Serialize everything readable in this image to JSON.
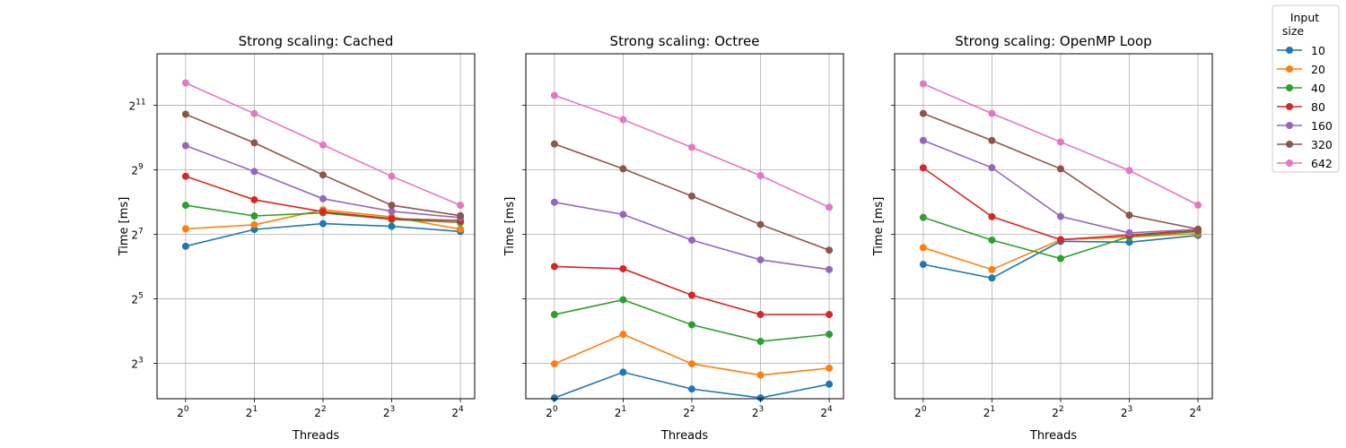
{
  "chart_data": {
    "type": "line",
    "xlabel": "Threads",
    "ylabel": "Time [ms]",
    "scale": {
      "x": "log2",
      "y": "log2"
    },
    "x": [
      1,
      2,
      4,
      8,
      16
    ],
    "x_ticks": [
      {
        "base": "2",
        "exp": "0"
      },
      {
        "base": "2",
        "exp": "1"
      },
      {
        "base": "2",
        "exp": "2"
      },
      {
        "base": "2",
        "exp": "3"
      },
      {
        "base": "2",
        "exp": "4"
      }
    ],
    "y_ticks": [
      {
        "base": "2",
        "exp": "3"
      },
      {
        "base": "2",
        "exp": "5"
      },
      {
        "base": "2",
        "exp": "7"
      },
      {
        "base": "2",
        "exp": "9"
      },
      {
        "base": "2",
        "exp": "11"
      }
    ],
    "grid": true,
    "legend": {
      "title_line1": "Input",
      "title_line2": "size",
      "position": "outside-top-right",
      "entries": [
        "10",
        "20",
        "40",
        "80",
        "160",
        "320",
        "642"
      ]
    },
    "colors": [
      "#1f77b4",
      "#ff7f0e",
      "#2ca02c",
      "#d62728",
      "#9467bd",
      "#8c564b",
      "#e377c2"
    ],
    "panels": [
      {
        "title": "Strong scaling: Cached",
        "show_ylabels": true,
        "ylim_log2": [
          1.9,
          12.6
        ],
        "series": [
          {
            "name": "10",
            "values": [
              99,
              142,
              161,
              152,
              136
            ]
          },
          {
            "name": "20",
            "values": [
              144,
              157,
              217,
              186,
              143
            ]
          },
          {
            "name": "40",
            "values": [
              239,
              190,
              203,
              176,
              165
            ]
          },
          {
            "name": "80",
            "values": [
              446,
              269,
              208,
              179,
              172
            ]
          },
          {
            "name": "160",
            "values": [
              861,
              494,
              275,
              210,
              183
            ]
          },
          {
            "name": "320",
            "values": [
              1691,
              915,
              459,
              239,
              191
            ]
          },
          {
            "name": "642",
            "values": [
              3313,
              1718,
              874,
              446,
              239
            ]
          }
        ]
      },
      {
        "title": "Strong scaling: Octree",
        "show_ylabels": false,
        "ylim_log2": [
          1.9,
          12.6
        ],
        "series": [
          {
            "name": "10",
            "values": [
              3.8,
              6.6,
              4.6,
              3.8,
              5.1
            ]
          },
          {
            "name": "20",
            "values": [
              7.9,
              14.9,
              7.9,
              6.2,
              7.2
            ]
          },
          {
            "name": "40",
            "values": [
              22.8,
              31.3,
              18.3,
              12.8,
              14.9
            ]
          },
          {
            "name": "80",
            "values": [
              64,
              61,
              34.6,
              22.8,
              22.8
            ]
          },
          {
            "name": "160",
            "values": [
              255,
              196,
              113,
              74,
              60
            ]
          },
          {
            "name": "320",
            "values": [
              893,
              523,
              291,
              158,
              91
            ]
          },
          {
            "name": "642",
            "values": [
              2535,
              1505,
              830,
              452,
              229
            ]
          }
        ]
      },
      {
        "title": "Strong scaling: OpenMP Loop",
        "show_ylabels": false,
        "ylim_log2": [
          1.9,
          12.6
        ],
        "series": [
          {
            "name": "10",
            "values": [
              67,
              50,
              110,
              108,
              125
            ]
          },
          {
            "name": "20",
            "values": [
              96,
              60,
              114,
              121,
              130
            ]
          },
          {
            "name": "40",
            "values": [
              184,
              113,
              76,
              122,
              136
            ]
          },
          {
            "name": "80",
            "values": [
              534,
              187,
              114,
              126,
              140
            ]
          },
          {
            "name": "160",
            "values": [
              962,
              536,
              188,
              132,
              142
            ]
          },
          {
            "name": "320",
            "values": [
              1720,
              962,
              523,
              193,
              143
            ]
          },
          {
            "name": "642",
            "values": [
              3250,
              1720,
              932,
              505,
              240
            ]
          }
        ]
      }
    ]
  }
}
